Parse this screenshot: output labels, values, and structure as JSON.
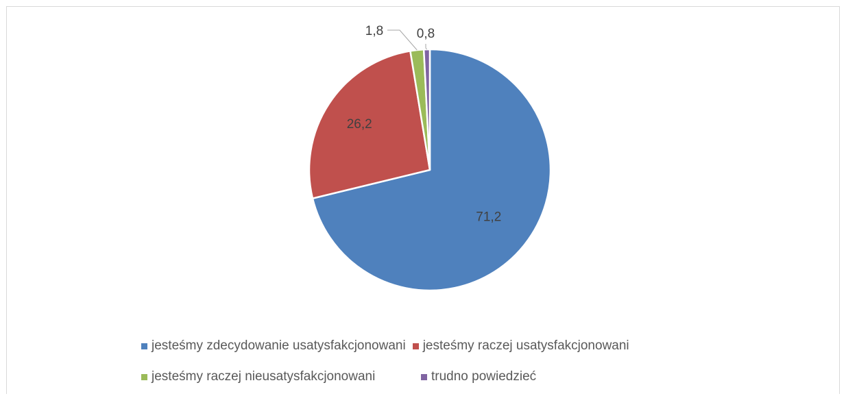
{
  "chart_data": {
    "type": "pie",
    "title": "",
    "slices": [
      {
        "label": "jesteśmy zdecydowanie usatysfakcjonowani",
        "value": 71.2,
        "value_label": "71,2",
        "color": "#4f81bd"
      },
      {
        "label": "jesteśmy raczej usatysfakcjonowani",
        "value": 26.2,
        "value_label": "26,2",
        "color": "#c0504d"
      },
      {
        "label": "jesteśmy raczej nieusatysfakcjonowani",
        "value": 1.8,
        "value_label": "1,8",
        "color": "#9bbb59"
      },
      {
        "label": "trudno powiedzieć",
        "value": 0.8,
        "value_label": "0,8",
        "color": "#8064a2"
      }
    ],
    "start_angle": "12 o'clock",
    "direction": "clockwise",
    "legend_position": "bottom"
  }
}
